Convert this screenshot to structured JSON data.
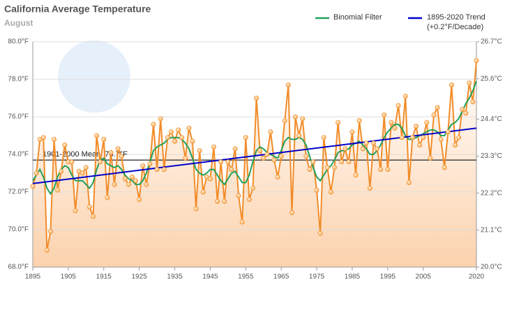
{
  "chart_data": {
    "type": "line",
    "title": "California Average Temperature",
    "subtitle": "August",
    "x": [
      1895,
      1896,
      1897,
      1898,
      1899,
      1900,
      1901,
      1902,
      1903,
      1904,
      1905,
      1906,
      1907,
      1908,
      1909,
      1910,
      1911,
      1912,
      1913,
      1914,
      1915,
      1916,
      1917,
      1918,
      1919,
      1920,
      1921,
      1922,
      1923,
      1924,
      1925,
      1926,
      1927,
      1928,
      1929,
      1930,
      1931,
      1932,
      1933,
      1934,
      1935,
      1936,
      1937,
      1938,
      1939,
      1940,
      1941,
      1942,
      1943,
      1944,
      1945,
      1946,
      1947,
      1948,
      1949,
      1950,
      1951,
      1952,
      1953,
      1954,
      1955,
      1956,
      1957,
      1958,
      1959,
      1960,
      1961,
      1962,
      1963,
      1964,
      1965,
      1966,
      1967,
      1968,
      1969,
      1970,
      1971,
      1972,
      1973,
      1974,
      1975,
      1976,
      1977,
      1978,
      1979,
      1980,
      1981,
      1982,
      1983,
      1984,
      1985,
      1986,
      1987,
      1988,
      1989,
      1990,
      1991,
      1992,
      1993,
      1994,
      1995,
      1996,
      1997,
      1998,
      1999,
      2000,
      2001,
      2002,
      2003,
      2004,
      2005,
      2006,
      2007,
      2008,
      2009,
      2010,
      2011,
      2012,
      2013,
      2014,
      2015,
      2016,
      2017,
      2018,
      2019,
      2020
    ],
    "series": [
      {
        "color": "#f28c28",
        "markers": true,
        "values": [
          72.3,
          73.0,
          74.8,
          74.9,
          68.9,
          69.9,
          74.8,
          72.1,
          73.1,
          74.5,
          73.6,
          73.6,
          71.0,
          73.1,
          73.0,
          73.3,
          71.2,
          70.7,
          75.0,
          73.6,
          74.8,
          71.7,
          74.1,
          72.4,
          74.3,
          73.9,
          72.7,
          72.4,
          72.8,
          72.6,
          71.6,
          73.4,
          72.4,
          73.5,
          75.6,
          73.2,
          75.9,
          73.2,
          74.9,
          75.2,
          74.7,
          75.3,
          74.9,
          73.8,
          75.4,
          74.7,
          71.1,
          74.2,
          72.0,
          72.8,
          72.7,
          74.4,
          71.5,
          73.6,
          71.5,
          73.6,
          73.2,
          74.3,
          71.8,
          70.4,
          74.9,
          71.6,
          72.2,
          77.0,
          74.2,
          73.8,
          74.0,
          75.2,
          73.7,
          72.8,
          73.9,
          75.8,
          77.7,
          70.9,
          76.0,
          75.0,
          75.9,
          73.9,
          73.2,
          73.6,
          72.1,
          69.8,
          74.9,
          73.3,
          72.0,
          73.3,
          75.7,
          73.6,
          74.3,
          73.6,
          75.2,
          72.9,
          75.8,
          74.3,
          74.6,
          72.2,
          74.6,
          74.3,
          73.2,
          76.1,
          73.2,
          75.7,
          75.4,
          76.6,
          74.9,
          77.1,
          72.5,
          74.9,
          75.5,
          74.5,
          74.9,
          75.7,
          73.8,
          76.1,
          76.5,
          74.8,
          73.3,
          75.2,
          77.7,
          74.5,
          74.9,
          76.4,
          76.2,
          77.8,
          76.8,
          79.0
        ]
      },
      {
        "name": "Binomial Filter",
        "color": "#22a05a",
        "values": [
          72.6,
          72.9,
          73.2,
          72.8,
          72.2,
          71.9,
          72.2,
          72.8,
          73.2,
          73.4,
          73.3,
          72.9,
          72.6,
          72.6,
          72.6,
          72.4,
          72.2,
          72.5,
          73.2,
          73.7,
          73.8,
          73.5,
          73.4,
          73.3,
          73.4,
          73.2,
          72.9,
          72.7,
          72.6,
          72.4,
          72.4,
          72.6,
          73.0,
          73.6,
          74.2,
          74.4,
          74.5,
          74.6,
          74.8,
          74.9,
          74.9,
          74.9,
          74.8,
          74.6,
          74.3,
          73.8,
          73.2,
          73.0,
          72.9,
          73.0,
          73.2,
          73.2,
          72.9,
          72.6,
          72.4,
          72.7,
          73.0,
          73.1,
          72.8,
          72.5,
          72.5,
          72.9,
          73.6,
          74.2,
          74.4,
          74.3,
          74.1,
          74.0,
          73.9,
          73.8,
          74.2,
          74.7,
          74.9,
          74.8,
          74.8,
          74.9,
          74.8,
          74.5,
          73.9,
          73.3,
          72.8,
          72.6,
          72.9,
          73.2,
          73.4,
          73.7,
          74.1,
          74.2,
          74.2,
          74.3,
          74.5,
          74.6,
          74.7,
          74.5,
          74.3,
          74.0,
          74.0,
          74.2,
          74.5,
          74.9,
          75.2,
          75.4,
          75.6,
          75.6,
          75.4,
          75.0,
          74.8,
          74.8,
          74.9,
          75.0,
          75.1,
          75.2,
          75.3,
          75.3,
          75.2,
          75.0,
          75.0,
          75.3,
          75.6,
          75.7,
          75.9,
          76.3,
          76.7,
          77.0,
          77.4,
          77.9
        ]
      },
      {
        "name": "1895-2020 Trend (+0.2°F/Decade)",
        "color": "#0000c8",
        "x": [
          1895,
          2020
        ],
        "values": [
          72.45,
          75.4
        ]
      }
    ],
    "mean": {
      "value": 73.7,
      "label": "1901-2000 Mean: 73.7°F"
    },
    "xlim": [
      1895,
      2020
    ],
    "xticks": [
      1895,
      1905,
      1915,
      1925,
      1935,
      1945,
      1955,
      1965,
      1975,
      1985,
      1995,
      2005,
      2020
    ],
    "ylim": [
      68,
      80
    ],
    "yticks": [
      {
        "value": 68,
        "label": "68.0°F"
      },
      {
        "value": 70,
        "label": "70.0°F"
      },
      {
        "value": 72,
        "label": "72.0°F"
      },
      {
        "value": 74,
        "label": "74.0°F"
      },
      {
        "value": 76,
        "label": "76.0°F"
      },
      {
        "value": 78,
        "label": "78.0°F"
      },
      {
        "value": 80,
        "label": "80.0°F"
      }
    ],
    "y2lim": [
      20.0,
      26.7
    ],
    "y2ticks": [
      {
        "value": 20,
        "label": "20.0°C"
      },
      21.1,
      22.2,
      23.3,
      24.4,
      25.6,
      26.7
    ],
    "grid": true
  }
}
